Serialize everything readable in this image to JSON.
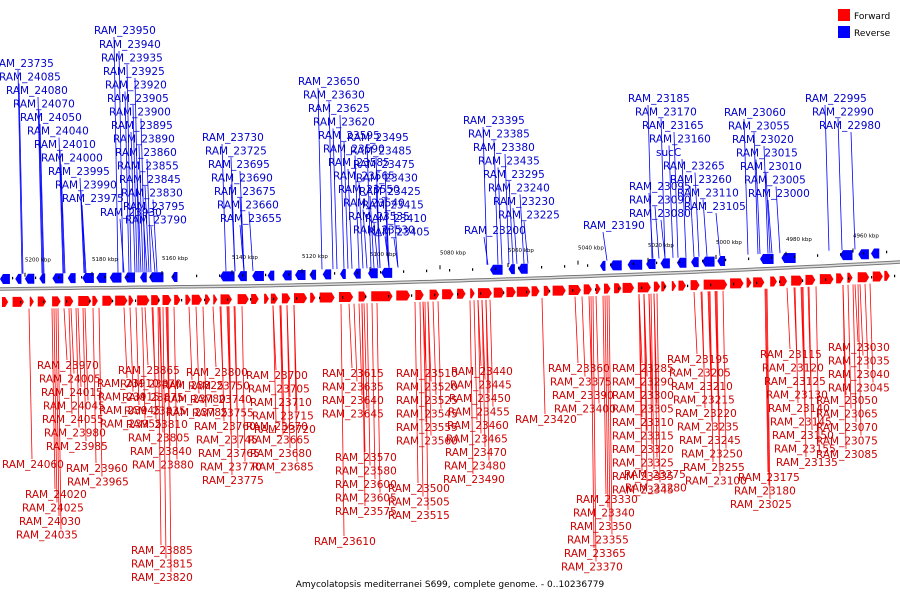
{
  "legend": {
    "items": [
      {
        "label": "Forward",
        "color": "#ff0000"
      },
      {
        "label": "Reverse",
        "color": "#0000ff"
      }
    ]
  },
  "colors": {
    "forward": "#ff0000",
    "reverse": "#0000ff",
    "axis": "#777777"
  },
  "title": "Amycolatopsis mediterranei S699, complete genome. - 0..10236779",
  "ticks": [
    "5200 kbp",
    "5180 kbp",
    "5160 kbp",
    "5140 kbp",
    "5120 kbp",
    "5100 kbp",
    "5080 kbp",
    "5060 kbp",
    "5040 kbp",
    "5020 kbp",
    "5000 kbp",
    "4980 kbp",
    "4960 kbp"
  ],
  "reverse_labels": [
    "RAM_23950",
    "RAM_23940",
    "RAM_23935",
    "RAM_23925",
    "RAM_23920",
    "RAM_23905",
    "RAM_23900",
    "RAM_23895",
    "RAM_23890",
    "RAM_23860",
    "RAM_23855",
    "RAM_23845",
    "RAM_23830",
    "RAM_23795",
    "RAM_23790",
    "RAM_23930",
    "RAM_23975",
    "RAM_23990",
    "RAM_23995",
    "RAM_24000",
    "RAM_24010",
    "RAM_24040",
    "RAM_24050",
    "RAM_24070",
    "RAM_24080",
    "RAM_24085",
    "RAM_23735",
    "RAM_23730",
    "RAM_23725",
    "RAM_23695",
    "RAM_23690",
    "RAM_23675",
    "RAM_23660",
    "RAM_23655",
    "RAM_23650",
    "RAM_23630",
    "RAM_23625",
    "RAM_23620",
    "RAM_23595",
    "RAM_23590",
    "RAM_23585",
    "RAM_23565",
    "RAM_23550",
    "RAM_23540",
    "RAM_23535",
    "RAM_23530",
    "RAM_23495",
    "RAM_23485",
    "RAM_23475",
    "RAM_23430",
    "RAM_23425",
    "RAM_23415",
    "RAM_23410",
    "RAM_23405",
    "RAM_23395",
    "RAM_23385",
    "RAM_23380",
    "RAM_23435",
    "RAM_23295",
    "RAM_23240",
    "RAM_23230",
    "RAM_23225",
    "RAM_23200",
    "RAM_23190",
    "RAM_23185",
    "RAM_23170",
    "RAM_23165",
    "RAM_23160",
    "sucC",
    "RAM_23265",
    "RAM_23260",
    "RAM_23110",
    "RAM_23105",
    "RAM_23095",
    "RAM_23090",
    "RAM_23080",
    "RAM_23060",
    "RAM_23055",
    "RAM_23020",
    "RAM_23015",
    "RAM_23010",
    "RAM_23005",
    "RAM_23000",
    "RAM_22995",
    "RAM_22990",
    "RAM_22980"
  ],
  "forward_labels": [
    "RAM_23970",
    "RAM_24005",
    "RAM_24015",
    "RAM_24045",
    "RAM_24055",
    "RAM_23980",
    "RAM_23985",
    "RAM_24060",
    "RAM_23960",
    "RAM_23965",
    "RAM_24020",
    "RAM_24025",
    "RAM_24030",
    "RAM_24035",
    "RAM_23910",
    "RAM_23915",
    "RAM_23945",
    "RAM_23955",
    "RAM_23865",
    "RAM_23870",
    "RAM_23875",
    "RAM_23835",
    "RAM_23810",
    "RAM_23805",
    "RAM_23840",
    "RAM_23880",
    "RAM_23885",
    "RAM_23815",
    "RAM_23820",
    "RAM_23825",
    "RAM_23780",
    "RAM_23785",
    "RAM_23800",
    "RAM_23750",
    "RAM_23740",
    "RAM_23755",
    "RAM_23760",
    "RAM_23745",
    "RAM_23765",
    "RAM_23770",
    "RAM_23775",
    "RAM_23700",
    "RAM_23705",
    "RAM_23710",
    "RAM_23715",
    "RAM_23720",
    "RAM_23670",
    "RAM_23665",
    "RAM_23680",
    "RAM_23685",
    "RAM_23615",
    "RAM_23635",
    "RAM_23640",
    "RAM_23645",
    "RAM_23570",
    "RAM_23580",
    "RAM_23600",
    "RAM_23605",
    "RAM_23575",
    "RAM_23610",
    "RAM_23510",
    "RAM_23520",
    "RAM_23525",
    "RAM_23545",
    "RAM_23555",
    "RAM_23560",
    "RAM_23500",
    "RAM_23505",
    "RAM_23515",
    "RAM_23440",
    "RAM_23445",
    "RAM_23450",
    "RAM_23455",
    "RAM_23460",
    "RAM_23465",
    "RAM_23470",
    "RAM_23480",
    "RAM_23490",
    "RAM_23420",
    "RAM_23360",
    "RAM_23375",
    "RAM_23390",
    "RAM_23400",
    "RAM_23285",
    "RAM_23290",
    "RAM_23300",
    "RAM_23305",
    "RAM_23310",
    "RAM_23315",
    "RAM_23320",
    "RAM_23325",
    "RAM_23335",
    "RAM_23345",
    "RAM_23330",
    "RAM_23340",
    "RAM_23350",
    "RAM_23355",
    "RAM_23365",
    "RAM_23370",
    "RAM_23275",
    "RAM_23280",
    "RAM_23195",
    "RAM_23205",
    "RAM_23210",
    "RAM_23215",
    "RAM_23220",
    "RAM_23235",
    "RAM_23245",
    "RAM_23250",
    "RAM_23255",
    "RAM_23100",
    "RAM_23115",
    "RAM_23120",
    "RAM_23125",
    "RAM_23130",
    "RAM_23140",
    "RAM_23145",
    "RAM_23150",
    "RAM_23155",
    "RAM_23135",
    "RAM_23175",
    "RAM_23180",
    "RAM_23025",
    "RAM_23030",
    "RAM_23035",
    "RAM_23040",
    "RAM_23045",
    "RAM_23050",
    "RAM_23065",
    "RAM_23070",
    "RAM_23075",
    "RAM_23085"
  ]
}
